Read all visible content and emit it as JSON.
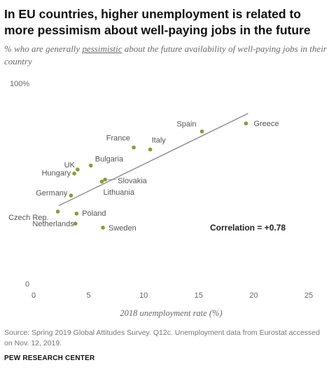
{
  "header": {
    "title": "In EU countries, higher unemployment is related to more pessimism about well-paying jobs in the future",
    "subtitle_pre": "% who are generally ",
    "subtitle_em": "pessimistic",
    "subtitle_post": " about the future availability of well-paying jobs in their country"
  },
  "chart_data": {
    "type": "scatter",
    "title": "",
    "xlabel": "2018 unemployment rate (%)",
    "ylabel": "",
    "xlim": [
      0,
      25
    ],
    "ylim": [
      0,
      100
    ],
    "x_ticks": [
      "0",
      "5",
      "10",
      "15",
      "20",
      "25"
    ],
    "y_ticks": [
      {
        "value": 0,
        "label": "0"
      },
      {
        "value": 100,
        "label": "100%"
      }
    ],
    "grid": false,
    "point_color": "#8a9a3a",
    "trend_color": "#8c8c8c",
    "trendline": {
      "x": [
        2.3,
        19.5
      ],
      "y": [
        39,
        85
      ]
    },
    "annotation": "Correlation = +0.78",
    "points": [
      {
        "label": "Greece",
        "x": 19.3,
        "y": 80
      },
      {
        "label": "Spain",
        "x": 15.3,
        "y": 76
      },
      {
        "label": "Italy",
        "x": 10.6,
        "y": 67
      },
      {
        "label": "France",
        "x": 9.1,
        "y": 68
      },
      {
        "label": "Bulgaria",
        "x": 5.2,
        "y": 59
      },
      {
        "label": "UK",
        "x": 4.0,
        "y": 57
      },
      {
        "label": "Hungary",
        "x": 3.7,
        "y": 55
      },
      {
        "label": "Slovakia",
        "x": 6.5,
        "y": 52
      },
      {
        "label": "Lithuania",
        "x": 6.2,
        "y": 51
      },
      {
        "label": "Germany",
        "x": 3.4,
        "y": 44
      },
      {
        "label": "Czech Rep.",
        "x": 2.2,
        "y": 36
      },
      {
        "label": "Poland",
        "x": 3.9,
        "y": 35
      },
      {
        "label": "Netherlands",
        "x": 3.8,
        "y": 30
      },
      {
        "label": "Sweden",
        "x": 6.3,
        "y": 28
      }
    ]
  },
  "footer": {
    "source": "Source: Spring 2019 Global Attitudes Survey. Q12c. Unemployment data from Eurostat accessed on Nov. 12, 2019.",
    "org": "PEW RESEARCH CENTER"
  }
}
